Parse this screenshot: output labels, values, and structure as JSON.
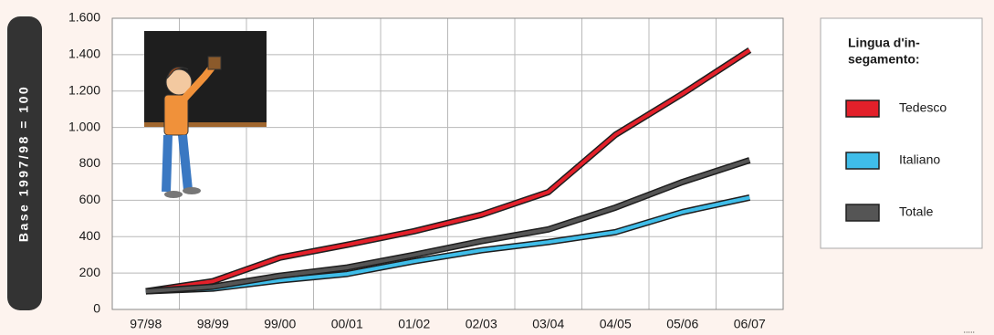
{
  "chart_data": {
    "type": "line",
    "y_axis_label": "Base 1997/98 = 100",
    "categories": [
      "97/98",
      "98/99",
      "99/00",
      "00/01",
      "01/02",
      "02/03",
      "03/04",
      "04/05",
      "05/06",
      "06/07"
    ],
    "series": [
      {
        "name": "Tedesco",
        "color": "#e3202a",
        "values": [
          100,
          155,
          285,
          355,
          430,
          520,
          645,
          960,
          1185,
          1425
        ]
      },
      {
        "name": "Italiano",
        "color": "#3fbde9",
        "values": [
          100,
          115,
          160,
          195,
          265,
          325,
          370,
          425,
          535,
          615
        ]
      },
      {
        "name": "Totale",
        "color": "#555555",
        "values": [
          100,
          125,
          185,
          230,
          300,
          375,
          440,
          560,
          700,
          820
        ]
      }
    ],
    "ylim": [
      0,
      1600
    ],
    "yticks": [
      0,
      200,
      400,
      600,
      800,
      {
        "value": 1000,
        "label": "1.000"
      },
      {
        "value": 1200,
        "label": "1.200"
      },
      {
        "value": 1400,
        "label": "1.400"
      },
      {
        "value": 1600,
        "label": "1.600"
      }
    ],
    "grid": true,
    "legend_title": [
      "Lingua d'in-",
      "segamento:"
    ],
    "legend_position": "right",
    "note": "....."
  }
}
